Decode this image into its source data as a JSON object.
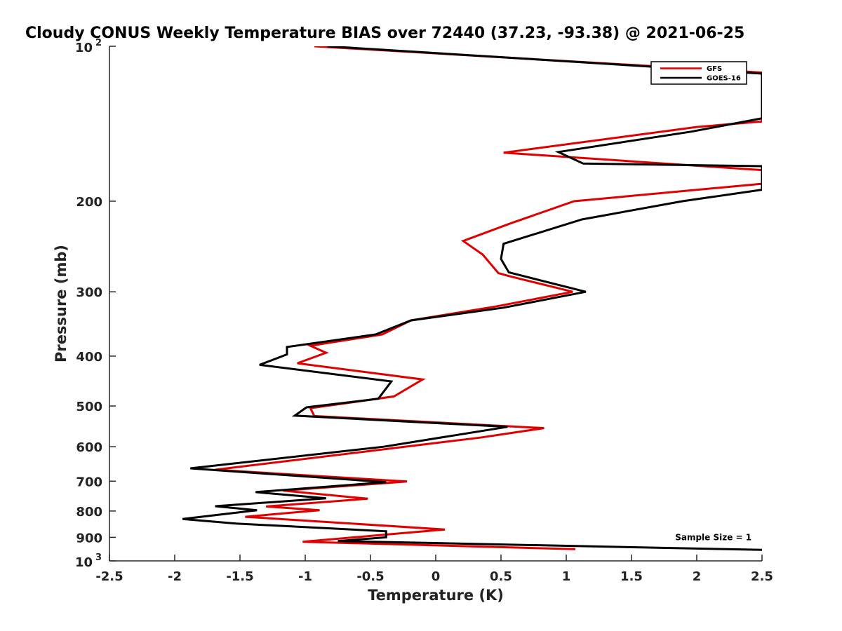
{
  "chart_data": {
    "type": "line",
    "title": "Cloudy CONUS Weekly Temperature BIAS over 72440 (37.23, -93.38) @ 2021-06-25",
    "xlabel": "Temperature (K)",
    "ylabel": "Pressure (mb)",
    "xlim": [
      -2.5,
      2.5
    ],
    "ylim": [
      100,
      1000
    ],
    "y_scale": "log",
    "y_reversed": true,
    "grid": false,
    "legend_position": "top-right",
    "x_ticks": [
      "-2.5",
      "-2",
      "-1.5",
      "-1",
      "-0.5",
      "0",
      "0.5",
      "1",
      "1.5",
      "2",
      "2.5"
    ],
    "x_tick_values": [
      -2.5,
      -2,
      -1.5,
      -1,
      -0.5,
      0,
      0.5,
      1,
      1.5,
      2,
      2.5
    ],
    "y_ticks": [
      {
        "value": 100,
        "base": "10",
        "exp": "2"
      },
      {
        "value": 200,
        "base": "200",
        "exp": ""
      },
      {
        "value": 300,
        "base": "300",
        "exp": ""
      },
      {
        "value": 400,
        "base": "400",
        "exp": ""
      },
      {
        "value": 500,
        "base": "500",
        "exp": ""
      },
      {
        "value": 600,
        "base": "600",
        "exp": ""
      },
      {
        "value": 700,
        "base": "700",
        "exp": ""
      },
      {
        "value": 800,
        "base": "800",
        "exp": ""
      },
      {
        "value": 900,
        "base": "900",
        "exp": ""
      },
      {
        "value": 1000,
        "base": "10",
        "exp": "3"
      }
    ],
    "series": [
      {
        "name": "GFS",
        "color": "#e00000",
        "points": [
          [
            -0.93,
            100
          ],
          [
            2.5,
            112.5
          ],
          [
            2.5,
            140
          ],
          [
            2.0,
            143.5
          ],
          [
            0.52,
            161
          ],
          [
            2.5,
            174
          ],
          [
            2.5,
            185
          ],
          [
            1.06,
            200
          ],
          [
            0.57,
            221
          ],
          [
            0.21,
            239
          ],
          [
            0.36,
            254
          ],
          [
            0.48,
            276
          ],
          [
            0.57,
            280
          ],
          [
            1.05,
            300
          ],
          [
            0.47,
            320
          ],
          [
            -0.19,
            341
          ],
          [
            -0.41,
            363
          ],
          [
            -0.96,
            382
          ],
          [
            -0.84,
            394
          ],
          [
            -1.06,
            413
          ],
          [
            -0.1,
            444
          ],
          [
            -0.32,
            479
          ],
          [
            -0.96,
            505
          ],
          [
            -0.93,
            523
          ],
          [
            0.83,
            552
          ],
          [
            0.34,
            576
          ],
          [
            -1.69,
            665
          ],
          [
            -0.22,
            701
          ],
          [
            -1.17,
            730
          ],
          [
            -0.52,
            757
          ],
          [
            -1.3,
            784
          ],
          [
            -0.89,
            797
          ],
          [
            -1.46,
            821
          ],
          [
            0.07,
            869
          ],
          [
            -1.02,
            918
          ],
          [
            1.07,
            949
          ]
        ]
      },
      {
        "name": "GOES-16",
        "color": "#000000",
        "points": [
          [
            -0.83,
            100
          ],
          [
            2.5,
            113
          ],
          [
            2.5,
            138
          ],
          [
            1.96,
            146.5
          ],
          [
            0.94,
            160.5
          ],
          [
            1.13,
            169
          ],
          [
            2.5,
            171
          ],
          [
            2.5,
            190
          ],
          [
            1.89,
            200
          ],
          [
            1.12,
            217
          ],
          [
            0.52,
            242
          ],
          [
            0.5,
            259
          ],
          [
            0.56,
            275
          ],
          [
            1.15,
            300
          ],
          [
            0.52,
            322
          ],
          [
            -0.19,
            341
          ],
          [
            -0.46,
            363
          ],
          [
            -1.14,
            384
          ],
          [
            -1.14,
            397
          ],
          [
            -1.35,
            416
          ],
          [
            -0.34,
            448
          ],
          [
            -0.44,
            484
          ],
          [
            -0.99,
            503
          ],
          [
            -1.08,
            522
          ],
          [
            0.55,
            549
          ],
          [
            -0.4,
            600
          ],
          [
            -1.88,
            661
          ],
          [
            -0.38,
            703
          ],
          [
            -1.38,
            735
          ],
          [
            -0.84,
            756
          ],
          [
            -1.69,
            783
          ],
          [
            -1.37,
            797
          ],
          [
            -1.94,
            829
          ],
          [
            -1.53,
            846
          ],
          [
            -0.38,
            876
          ],
          [
            -0.38,
            900
          ],
          [
            -0.75,
            915
          ],
          [
            2.5,
            952
          ]
        ]
      }
    ],
    "annotations": [
      {
        "text": "Sample Size = 1",
        "x": 2.42,
        "y": 900
      }
    ]
  }
}
